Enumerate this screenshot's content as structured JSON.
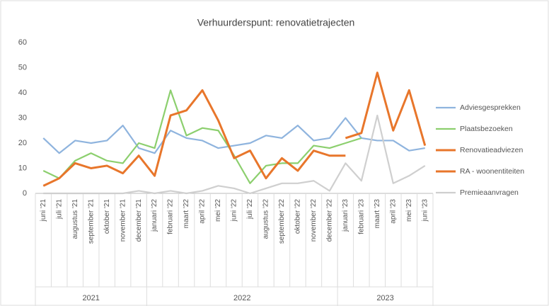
{
  "chart_data": {
    "type": "line",
    "title": "Verhuurderspunt: renovatietrajecten",
    "categories": [
      "juni '21",
      "juli '21",
      "augustus '21",
      "september '21",
      "oktober '21",
      "november '21",
      "december '21",
      "januari '22",
      "februari '22",
      "maart '22",
      "april '22",
      "mei '22",
      "juni '22",
      "juli '22",
      "augustus '22",
      "september '22",
      "oktober '22",
      "november '22",
      "december '22",
      "januari '23",
      "februari '23",
      "maart '23",
      "april '23",
      "mei '23",
      "juni '23"
    ],
    "year_groups": [
      {
        "label": "2021",
        "first": "juni '21",
        "last": "december '21"
      },
      {
        "label": "2022",
        "first": "januari '22",
        "last": "december '22"
      },
      {
        "label": "2023",
        "first": "januari '23",
        "last": "juni '23"
      }
    ],
    "series": [
      {
        "name": "Adviesgesprekken",
        "color": "#8fb4de",
        "values": [
          22,
          16,
          21,
          20,
          21,
          27,
          18,
          16,
          25,
          22,
          21,
          18,
          19,
          20,
          23,
          22,
          27,
          21,
          22,
          30,
          22,
          21,
          21,
          17,
          18
        ]
      },
      {
        "name": "Plaatsbezoeken",
        "color": "#8ccf6e",
        "values": [
          9,
          6,
          13,
          16,
          13,
          12,
          20,
          18,
          41,
          23,
          26,
          25,
          15,
          4,
          11,
          12,
          12,
          19,
          18,
          20,
          22,
          null,
          null,
          null,
          null
        ]
      },
      {
        "name": "Renovatieadviezen",
        "color": "#e8762b",
        "values": [
          3,
          6,
          12,
          10,
          11,
          8,
          15,
          7,
          31,
          33,
          41,
          29,
          14,
          17,
          6,
          14,
          9,
          17,
          15,
          15,
          null,
          null,
          null,
          null,
          null
        ]
      },
      {
        "name": "RA - woonentiteiten",
        "color": "#e8762b",
        "values": [
          null,
          null,
          null,
          null,
          null,
          null,
          null,
          null,
          null,
          null,
          null,
          null,
          null,
          null,
          null,
          null,
          null,
          null,
          null,
          22,
          24,
          48,
          25,
          41,
          19
        ]
      },
      {
        "name": "Premieaanvragen",
        "color": "#cfcfcf",
        "values": [
          0,
          0,
          0,
          0,
          0,
          0,
          1,
          0,
          1,
          0,
          1,
          3,
          2,
          0,
          2,
          4,
          4,
          5,
          1,
          12,
          5,
          31,
          4,
          7,
          11
        ]
      }
    ],
    "ylim": [
      0,
      60
    ],
    "yticks": [
      0,
      10,
      20,
      30,
      40,
      50,
      60
    ],
    "grid": false,
    "legend": "right"
  }
}
